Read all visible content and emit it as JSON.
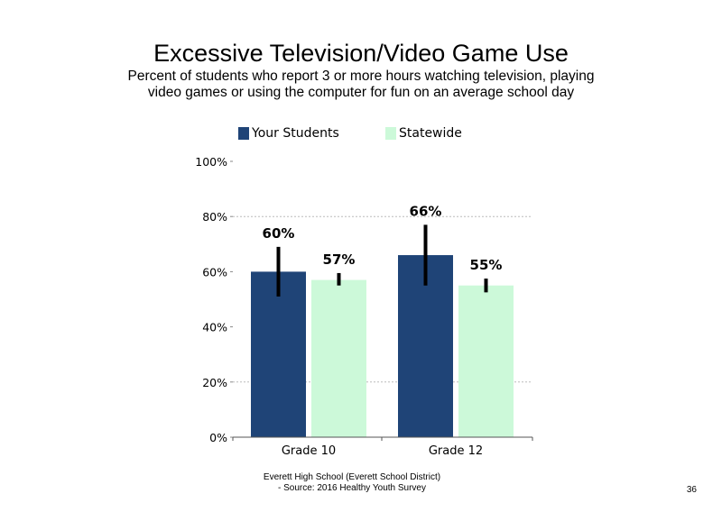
{
  "colors": {
    "your_students": "#1f4477",
    "statewide": "#ccf9d9",
    "error_bar": "#000000",
    "grid": "#bbbbbb"
  },
  "footer": {
    "line1": "Everett High School (Everett School District)",
    "line2": "- Source: 2016 Healthy Youth Survey"
  },
  "page_number": "36",
  "chart_data": {
    "type": "bar",
    "title": "Excessive Television/Video Game Use",
    "subtitle": "Percent of students who report 3 or more hours watching television, playing video games or using the computer for fun on an average school day",
    "categories": [
      "Grade 10",
      "Grade 12"
    ],
    "series": [
      {
        "name": "Your Students",
        "values": [
          60,
          66
        ],
        "labels": [
          "60%",
          "66%"
        ],
        "error_low": [
          51,
          55
        ],
        "error_high": [
          69,
          77
        ]
      },
      {
        "name": "Statewide",
        "values": [
          57,
          55
        ],
        "labels": [
          "57%",
          "55%"
        ],
        "error_low": [
          55,
          52.5
        ],
        "error_high": [
          59.5,
          57.5
        ]
      }
    ],
    "ylim": [
      0,
      100
    ],
    "yticks": [
      0,
      20,
      40,
      60,
      80,
      100
    ],
    "ytick_labels": [
      "0%",
      "20%",
      "40%",
      "60%",
      "80%",
      "100%"
    ],
    "gridlines": [
      20,
      80
    ],
    "legend_position": "top"
  }
}
